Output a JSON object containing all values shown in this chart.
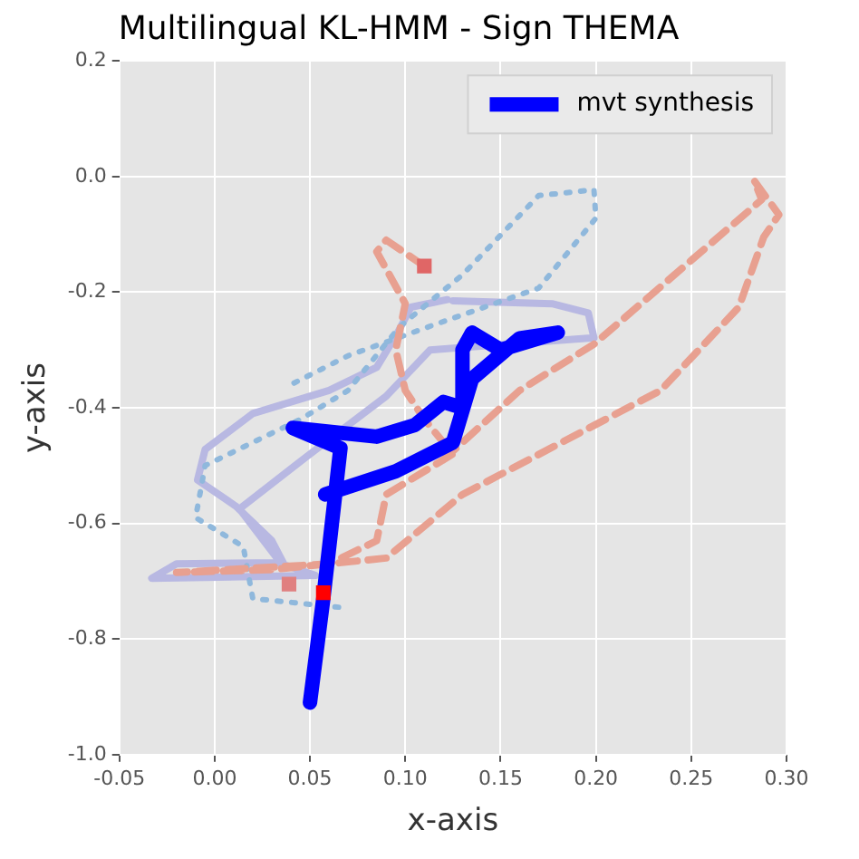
{
  "chart_data": {
    "type": "line",
    "title": "Multilingual KL-HMM - Sign THEMA",
    "xlabel": "x-axis",
    "ylabel": "y-axis",
    "xlim": [
      -0.05,
      0.3
    ],
    "xticks": [
      {
        "value": -0.05,
        "label": "-0.05"
      },
      {
        "value": 0,
        "label": "0.00"
      },
      {
        "value": 0.05,
        "label": "0.05"
      },
      {
        "value": 0.1,
        "label": "0.10"
      },
      {
        "value": 0.15,
        "label": "0.15"
      },
      {
        "value": 0.2,
        "label": "0.20"
      },
      {
        "value": 0.25,
        "label": "0.25"
      },
      {
        "value": 0.3,
        "label": "0.30"
      }
    ],
    "ylim": [
      -1.0,
      0.2
    ],
    "yticks": [
      {
        "value": -1.0,
        "label": "-1.0"
      },
      {
        "value": -0.8,
        "label": "-0.8"
      },
      {
        "value": -0.6,
        "label": "-0.6"
      },
      {
        "value": -0.4,
        "label": "-0.4"
      },
      {
        "value": -0.2,
        "label": "-0.2"
      },
      {
        "value": 0,
        "label": "0.0"
      },
      {
        "value": 0.2,
        "label": "0.2"
      }
    ],
    "grid": true,
    "legend": "top right",
    "marker": "none",
    "series": [
      {
        "color": "#b8b8e2",
        "line_style": "solid",
        "x": [
          0.122,
          0.103,
          0.096,
          0.085,
          0.06,
          0.02,
          -0.005,
          -0.009,
          0.011,
          0.03,
          0.036,
          -0.02,
          -0.033,
          0.053,
          0.035,
          0.013,
          0.05,
          0.09,
          0.113,
          0.199,
          0.196,
          0.177,
          0.125
        ],
        "values": [
          -0.213,
          -0.226,
          -0.27,
          -0.33,
          -0.37,
          -0.41,
          -0.472,
          -0.525,
          -0.57,
          -0.63,
          -0.668,
          -0.67,
          -0.695,
          -0.69,
          -0.67,
          -0.575,
          -0.48,
          -0.38,
          -0.3,
          -0.279,
          -0.236,
          -0.22,
          -0.215
        ]
      },
      {
        "color": "#8fb8dc",
        "line_style": "dotted",
        "x": [
          0.065,
          0.02,
          0.015,
          -0.01,
          -0.005,
          0.02,
          0.045,
          0.07,
          0.097,
          0.13,
          0.17,
          0.199,
          0.2,
          0.17,
          0.113,
          0.07,
          0.04
        ],
        "values": [
          -0.745,
          -0.73,
          -0.64,
          -0.59,
          -0.5,
          -0.46,
          -0.42,
          -0.37,
          -0.26,
          -0.17,
          -0.033,
          -0.023,
          -0.072,
          -0.193,
          -0.259,
          -0.31,
          -0.36
        ]
      },
      {
        "color": "#e8a090",
        "line_style": "dashed",
        "x": [
          0.11,
          0.09,
          0.085,
          0.1,
          0.095,
          0.1,
          0.11,
          0.125,
          0.09,
          0.085,
          0.06,
          -0.02,
          0.03,
          0.09,
          0.13,
          0.234,
          0.275,
          0.288,
          0.296,
          0.283,
          0.287,
          0.199,
          0.16,
          0.12
        ],
        "values": [
          -0.155,
          -0.11,
          -0.13,
          -0.22,
          -0.3,
          -0.37,
          -0.42,
          -0.48,
          -0.55,
          -0.63,
          -0.67,
          -0.685,
          -0.68,
          -0.66,
          -0.55,
          -0.37,
          -0.226,
          -0.105,
          -0.066,
          -0.007,
          -0.04,
          -0.29,
          -0.37,
          -0.49
        ]
      },
      {
        "name": "mvt synthesis",
        "color": "#0000ff",
        "line_style": "solid",
        "x": [
          0.05,
          0.057,
          0.066,
          0.041,
          0.085,
          0.105,
          0.12,
          0.13,
          0.13,
          0.135,
          0.15,
          0.18,
          0.16,
          0.135,
          0.125,
          0.095,
          0.058
        ],
        "values": [
          -0.91,
          -0.73,
          -0.47,
          -0.435,
          -0.45,
          -0.43,
          -0.39,
          -0.4,
          -0.3,
          -0.27,
          -0.3,
          -0.27,
          -0.28,
          -0.35,
          -0.46,
          -0.51,
          -0.55
        ]
      },
      {
        "type": "scatter",
        "marker": "square",
        "x": [
          0.11,
          0.039,
          0.057
        ],
        "values": [
          -0.155,
          -0.705,
          -0.72
        ],
        "colors": [
          "#e06666",
          "#e08080",
          "#ff0000"
        ]
      }
    ]
  }
}
